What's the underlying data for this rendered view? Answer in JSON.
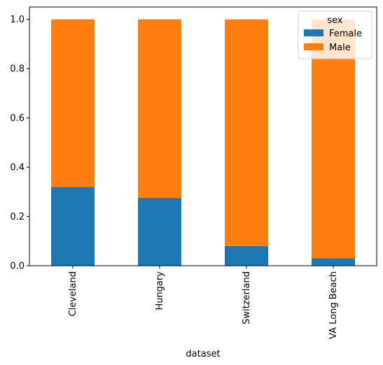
{
  "chart_data": {
    "type": "bar",
    "stacked": true,
    "categories": [
      "Cleveland",
      "Hungary",
      "Switzerland",
      "VA Long Beach"
    ],
    "series": [
      {
        "name": "Female",
        "values": [
          0.32,
          0.275,
          0.08,
          0.03
        ],
        "color": "#1f77b4"
      },
      {
        "name": "Male",
        "values": [
          0.68,
          0.725,
          0.92,
          0.97
        ],
        "color": "#ff7f0e"
      }
    ],
    "xlabel": "dataset",
    "ylabel": "",
    "ylim": [
      0,
      1.05
    ],
    "yticks": [
      0.0,
      0.2,
      0.4,
      0.6,
      0.8,
      1.0
    ],
    "ytick_labels": [
      "0.0",
      "0.2",
      "0.4",
      "0.6",
      "0.8",
      "1.0"
    ],
    "legend": {
      "title": "sex",
      "placement": "top-right"
    },
    "grid": false
  }
}
